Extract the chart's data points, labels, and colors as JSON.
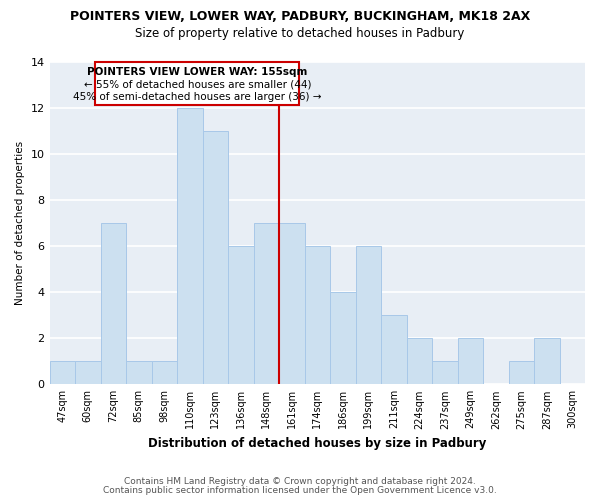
{
  "title": "POINTERS VIEW, LOWER WAY, PADBURY, BUCKINGHAM, MK18 2AX",
  "subtitle": "Size of property relative to detached houses in Padbury",
  "xlabel": "Distribution of detached houses by size in Padbury",
  "ylabel": "Number of detached properties",
  "bin_labels": [
    "47sqm",
    "60sqm",
    "72sqm",
    "85sqm",
    "98sqm",
    "110sqm",
    "123sqm",
    "136sqm",
    "148sqm",
    "161sqm",
    "174sqm",
    "186sqm",
    "199sqm",
    "211sqm",
    "224sqm",
    "237sqm",
    "249sqm",
    "262sqm",
    "275sqm",
    "287sqm",
    "300sqm"
  ],
  "bar_heights": [
    1,
    1,
    7,
    1,
    1,
    12,
    11,
    6,
    7,
    7,
    6,
    4,
    6,
    3,
    2,
    1,
    2,
    0,
    1,
    2,
    0
  ],
  "bar_color": "#cce0f0",
  "bar_edge_color": "#a8c8e8",
  "reference_line_x": 8.5,
  "reference_line_label": "POINTERS VIEW LOWER WAY: 155sqm",
  "annotation_line1": "← 55% of detached houses are smaller (44)",
  "annotation_line2": "45% of semi-detached houses are larger (36) →",
  "annotation_box_edge": "#cc0000",
  "annotation_box_face": "#ffffff",
  "ylim": [
    0,
    14
  ],
  "yticks": [
    0,
    2,
    4,
    6,
    8,
    10,
    12,
    14
  ],
  "footer1": "Contains HM Land Registry data © Crown copyright and database right 2024.",
  "footer2": "Contains public sector information licensed under the Open Government Licence v3.0.",
  "background_color": "#ffffff",
  "plot_bg_color": "#e8eef5",
  "grid_color": "#ffffff"
}
